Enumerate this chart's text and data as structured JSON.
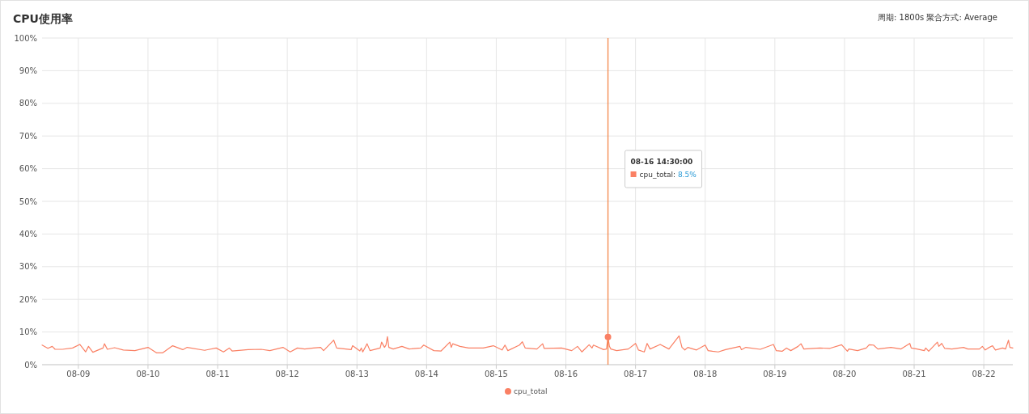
{
  "chart_data": {
    "type": "line",
    "title": "CPU使用率",
    "subtitle": "周期: 1800s   聚合方式: Average",
    "x": [
      "--08-08T11:30",
      "--08-08T13:30",
      "--08-08T15:00",
      "--08-08T16:00",
      "--08-08T18:30",
      "--08-08T22:00",
      "--08-09T00:30",
      "--08-09T02:30",
      "--08-09T03:30",
      "--08-09T05:00",
      "--08-09T08:30",
      "--08-09T09:00",
      "--08-09T10:00",
      "--08-09T12:30",
      "--08-09T15:30",
      "--08-09T19:30",
      "--08-10T00:00",
      "--08-10T03:00",
      "--08-10T05:00",
      "--08-10T08:30",
      "--08-10T12:00",
      "--08-10T13:30",
      "--08-10T19:30",
      "--08-10T23:30",
      "--08-11T02:00",
      "--08-11T04:00",
      "--08-11T05:00",
      "--08-11T10:30",
      "--08-11T15:00",
      "--08-11T18:00",
      "--08-11T22:30",
      "--08-12T01:00",
      "--08-12T03:30",
      "--08-12T06:00",
      "--08-12T09:00",
      "--08-12T11:30",
      "--08-12T12:30",
      "--08-12T16:00",
      "--08-12T17:00",
      "--08-12T22:00",
      "--08-12T22:30",
      "--08-13T01:00",
      "--08-13T01:30",
      "--08-13T02:00",
      "--08-13T03:30",
      "--08-13T04:30",
      "--08-13T08:00",
      "--08-13T08:30",
      "--08-13T09:30",
      "--08-13T10:00",
      "--08-13T10:30",
      "--08-13T11:00",
      "--08-13T12:30",
      "--08-13T15:30",
      "--08-13T18:00",
      "--08-13T22:00",
      "--08-13T23:00",
      "--08-14T02:30",
      "--08-14T05:00",
      "--08-14T08:00",
      "--08-14T08:30",
      "--08-14T09:00",
      "--08-14T11:30",
      "--08-14T14:30",
      "--08-14T19:30",
      "--08-14T23:00",
      "--08-15T02:00",
      "--08-15T03:00",
      "--08-15T04:00",
      "--08-15T08:00",
      "--08-15T09:00",
      "--08-15T10:00",
      "--08-15T14:00",
      "--08-15T16:00",
      "--08-15T16:30",
      "--08-15T22:30",
      "--08-16T02:00",
      "--08-16T04:00",
      "--08-16T05:30",
      "--08-16T08:00",
      "--08-16T09:00",
      "--08-16T09:30",
      "--08-16T13:00",
      "--08-16T14:00",
      "--08-16T14:30",
      "--08-16T15:00",
      "--08-16T15:30",
      "--08-16T17:30",
      "--08-16T21:30",
      "--08-17T00:00",
      "--08-17T01:00",
      "--08-17T03:00",
      "--08-17T04:00",
      "--08-17T05:00",
      "--08-17T08:30",
      "--08-17T11:30",
      "--08-17T15:00",
      "--08-17T16:00",
      "--08-17T17:00",
      "--08-17T18:00",
      "--08-17T21:00",
      "--08-18T00:00",
      "--08-18T01:00",
      "--08-18T02:30",
      "--08-18T04:30",
      "--08-18T07:00",
      "--08-18T12:00",
      "--08-18T12:30",
      "--08-18T14:00",
      "--08-18T19:00",
      "--08-18T23:30",
      "--08-19T00:30",
      "--08-19T02:30",
      "--08-19T04:00",
      "--08-19T05:30",
      "--08-19T08:00",
      "--08-19T09:00",
      "--08-19T10:00",
      "--08-19T15:30",
      "--08-19T19:00",
      "--08-19T23:00",
      "--08-20T01:00",
      "--08-20T01:30",
      "--08-20T04:30",
      "--08-20T07:30",
      "--08-20T08:30",
      "--08-20T10:00",
      "--08-20T11:30",
      "--08-20T16:00",
      "--08-20T19:30",
      "--08-20T22:30",
      "--08-20T23:00",
      "--08-21T01:00",
      "--08-21T03:30",
      "--08-21T04:00",
      "--08-21T05:00",
      "--08-21T08:00",
      "--08-21T08:30",
      "--08-21T09:30",
      "--08-21T10:30",
      "--08-21T13:00",
      "--08-21T17:00",
      "--08-21T18:30",
      "--08-21T22:30",
      "--08-21T23:30",
      "--08-22T00:30",
      "--08-22T01:30",
      "--08-22T03:00",
      "--08-22T04:00",
      "--08-22T06:30",
      "--08-22T07:30",
      "--08-22T08:30",
      "--08-22T09:00",
      "--08-22T10:00"
    ],
    "series": [
      {
        "name": "cpu_total",
        "color": "#fa8064",
        "values": [
          6.0,
          5.0,
          5.6,
          4.7,
          4.7,
          5.1,
          6.2,
          3.9,
          5.6,
          3.8,
          5.1,
          6.4,
          4.7,
          5.2,
          4.5,
          4.3,
          5.3,
          3.6,
          3.6,
          5.8,
          4.6,
          5.3,
          4.4,
          5.1,
          3.9,
          5.1,
          4.2,
          4.6,
          4.7,
          4.3,
          5.3,
          3.9,
          5.1,
          4.8,
          5.1,
          5.3,
          4.3,
          7.5,
          5.1,
          4.6,
          5.8,
          4.2,
          5.1,
          3.9,
          6.4,
          4.3,
          5.1,
          6.9,
          5.3,
          6.0,
          8.6,
          5.3,
          4.8,
          5.6,
          4.8,
          5.1,
          6.0,
          4.3,
          4.2,
          6.9,
          5.3,
          6.4,
          5.6,
          5.1,
          5.1,
          5.8,
          4.5,
          6.0,
          4.3,
          6.0,
          7.0,
          5.1,
          4.8,
          6.4,
          5.0,
          5.1,
          4.3,
          5.6,
          3.9,
          6.1,
          5.1,
          6.0,
          4.6,
          4.8,
          8.5,
          5.6,
          4.8,
          4.3,
          4.8,
          6.5,
          4.5,
          3.9,
          6.5,
          4.8,
          6.2,
          4.8,
          8.8,
          5.3,
          4.5,
          5.3,
          4.5,
          6.0,
          4.3,
          4.1,
          3.9,
          4.6,
          5.6,
          4.6,
          5.3,
          4.7,
          6.2,
          4.3,
          4.1,
          5.1,
          4.3,
          5.6,
          6.4,
          4.8,
          5.1,
          5.0,
          6.1,
          4.1,
          4.8,
          4.3,
          5.1,
          6.1,
          6.0,
          4.8,
          5.3,
          4.8,
          6.5,
          5.1,
          4.8,
          4.3,
          5.1,
          4.1,
          6.9,
          5.6,
          6.5,
          5.0,
          4.8,
          5.3,
          4.8,
          4.8,
          5.6,
          4.5,
          5.1,
          5.8,
          4.5,
          5.1,
          4.8,
          7.5,
          5.3,
          5.1
        ]
      }
    ],
    "xlim": [
      "--08-08T11:30",
      "--08-22T10:00"
    ],
    "xticks": [
      {
        "value": "--08-09",
        "label": "08-09"
      },
      {
        "value": "--08-10",
        "label": "08-10"
      },
      {
        "value": "--08-11",
        "label": "08-11"
      },
      {
        "value": "--08-12",
        "label": "08-12"
      },
      {
        "value": "--08-13",
        "label": "08-13"
      },
      {
        "value": "--08-14",
        "label": "08-14"
      },
      {
        "value": "--08-15",
        "label": "08-15"
      },
      {
        "value": "--08-16",
        "label": "08-16"
      },
      {
        "value": "--08-17",
        "label": "08-17"
      },
      {
        "value": "--08-18",
        "label": "08-18"
      },
      {
        "value": "--08-19",
        "label": "08-19"
      },
      {
        "value": "--08-20",
        "label": "08-20"
      },
      {
        "value": "--08-21",
        "label": "08-21"
      },
      {
        "value": "--08-22",
        "label": "08-22"
      }
    ],
    "ylim": [
      0,
      100
    ],
    "yticks": [
      {
        "value": 0,
        "label": "0%"
      },
      {
        "value": 10,
        "label": "10%"
      },
      {
        "value": 20,
        "label": "20%"
      },
      {
        "value": 30,
        "label": "30%"
      },
      {
        "value": 40,
        "label": "40%"
      },
      {
        "value": 50,
        "label": "50%"
      },
      {
        "value": 60,
        "label": "60%"
      },
      {
        "value": 70,
        "label": "70%"
      },
      {
        "value": 80,
        "label": "80%"
      },
      {
        "value": 90,
        "label": "90%"
      },
      {
        "value": 100,
        "label": "100%"
      }
    ],
    "grid": true,
    "legend": "bottom",
    "ref_lines": [
      {
        "axis": "x",
        "value": "--08-16T14:30",
        "color": "#f4864a"
      }
    ],
    "annotations": [
      "08-16 14:30:00",
      "cpu_total: 8.5%"
    ]
  }
}
